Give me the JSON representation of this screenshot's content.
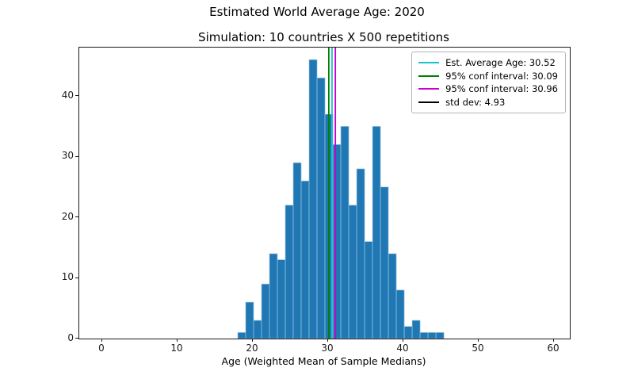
{
  "figure": {
    "suptitle": "Estimated World Average Age: 2020",
    "title": "Simulation: 10 countries X 500 repetitions"
  },
  "chart_data": {
    "type": "bar",
    "subtype": "histogram",
    "suptitle": "Estimated World Average Age: 2020",
    "title": "Simulation: 10 countries X 500 repetitions",
    "xlabel": "Age (Weighted Mean of Sample Medians)",
    "ylabel": "",
    "xlim": [
      -3.05,
      62.1
    ],
    "ylim": [
      0,
      48
    ],
    "xticks": [
      0,
      10,
      20,
      30,
      40,
      50,
      60
    ],
    "yticks": [
      0,
      10,
      20,
      30,
      40
    ],
    "grid": false,
    "bar_color": "#1f77b4",
    "bar_edge_color": "#9cc4de",
    "bin_start": 18.0,
    "bin_width": 1.053,
    "counts": [
      1,
      6,
      3,
      9,
      14,
      13,
      22,
      29,
      26,
      46,
      43,
      37,
      32,
      35,
      22,
      28,
      16,
      35,
      25,
      14,
      8,
      2,
      3,
      1,
      1,
      1
    ],
    "vlines": [
      {
        "name": "conf-interval-lower-line",
        "value": 30.09,
        "color": "#008000"
      },
      {
        "name": "average-age-line",
        "value": 30.52,
        "color": "#17c3cf"
      },
      {
        "name": "conf-interval-upper-line",
        "value": 30.96,
        "color": "#cc00cc"
      }
    ],
    "legend": {
      "position": "upper right",
      "entries": [
        {
          "label": "Est. Average Age: 30.52",
          "color": "#17c3cf"
        },
        {
          "label": "95% conf interval: 30.09",
          "color": "#008000"
        },
        {
          "label": "95% conf interval: 30.96",
          "color": "#cc00cc"
        },
        {
          "label": "std dev: 4.93",
          "color": "#000000"
        }
      ]
    }
  }
}
